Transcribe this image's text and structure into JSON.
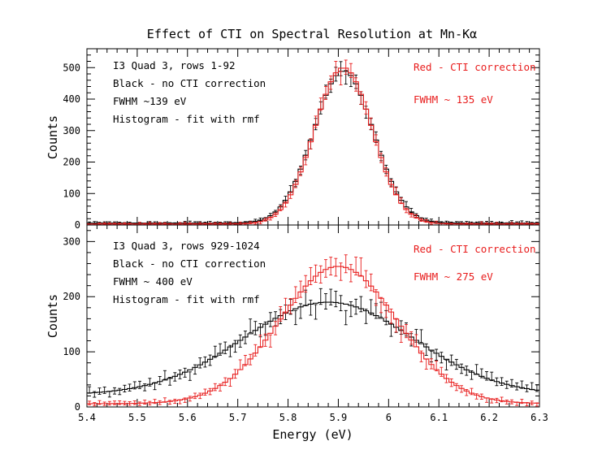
{
  "chart_data": [
    {
      "type": "scatter",
      "title": "Effect of CTI on Spectral Resolution at Mn-Kα",
      "xlabel": "",
      "ylabel": "Counts",
      "xlim": [
        5.4,
        6.3
      ],
      "ylim": [
        0,
        560
      ],
      "x_ticks": [
        "5.4",
        "5.5",
        "5.6",
        "5.7",
        "5.8",
        "5.9",
        "6",
        "6.1",
        "6.2",
        "6.3"
      ],
      "y_ticks": [
        "0",
        "100",
        "200",
        "300",
        "400",
        "500"
      ],
      "annotations_left": [
        "I3 Quad 3, rows 1-92",
        "Black - no CTI correction",
        "FWHM ~139 eV",
        "Histogram - fit with rmf"
      ],
      "annotations_right": [
        "Red - CTI correction",
        "FWHM ~ 135 eV"
      ],
      "series": [
        {
          "color": "#000000",
          "style": "histogram+errorbars",
          "peak_x": 5.91,
          "peak_counts": 490,
          "fwhm_ev": 139,
          "tail_level": 6
        },
        {
          "color": "#e81c1c",
          "style": "histogram+errorbars",
          "peak_x": 5.91,
          "peak_counts": 500,
          "fwhm_ev": 135,
          "tail_level": 3
        }
      ]
    },
    {
      "type": "scatter",
      "title": "",
      "xlabel": "Energy (eV)",
      "ylabel": "Counts",
      "xlim": [
        5.4,
        6.3
      ],
      "ylim": [
        0,
        330
      ],
      "x_ticks": [
        "5.4",
        "5.5",
        "5.6",
        "5.7",
        "5.8",
        "5.9",
        "6",
        "6.1",
        "6.2",
        "6.3"
      ],
      "y_ticks": [
        "0",
        "100",
        "200",
        "300"
      ],
      "annotations_left": [
        "I3 Quad 3, rows 929-1024",
        "Black - no CTI correction",
        "FWHM ~ 400 eV",
        "Histogram - fit with rmf"
      ],
      "annotations_right": [
        "Red - CTI correction",
        "FWHM ~ 275 eV"
      ],
      "series": [
        {
          "color": "#000000",
          "style": "histogram+errorbars",
          "peak_x": 5.88,
          "peak_counts": 190,
          "fwhm_ev": 400,
          "tail_level": 22
        },
        {
          "color": "#e81c1c",
          "style": "histogram+errorbars",
          "peak_x": 5.9,
          "peak_counts": 255,
          "fwhm_ev": 275,
          "tail_level": 6
        }
      ]
    }
  ]
}
